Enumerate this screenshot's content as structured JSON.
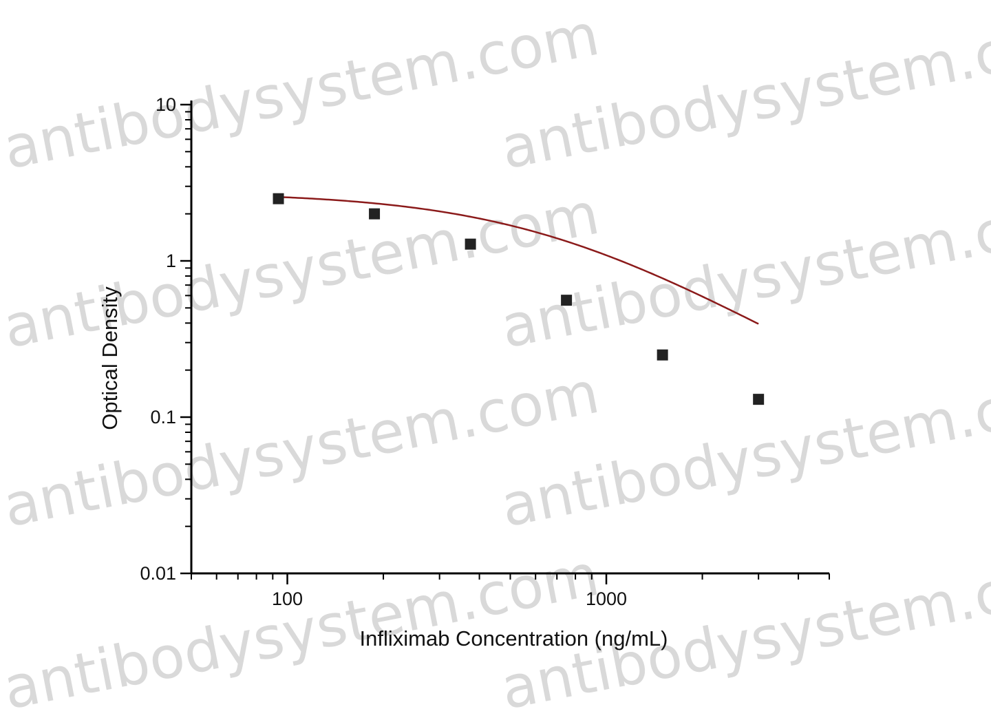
{
  "watermark": {
    "text": "antibodysystem.com",
    "color": "#d9d9d9"
  },
  "chart_data": {
    "type": "scatter",
    "xlabel": "Infliximab Concentration (ng/mL)",
    "ylabel": "Optical Density",
    "x_scale": "log",
    "y_scale": "log",
    "xlim": [
      50,
      5000
    ],
    "ylim": [
      0.01,
      10
    ],
    "x_tick_labels": [
      "100",
      "1000"
    ],
    "y_tick_labels": [
      "10",
      "1",
      "0.1",
      "0.01"
    ],
    "grid": false,
    "legend": "none",
    "series": [
      {
        "marker": "square",
        "marker_color": "#222222",
        "line_color": "#8b1a1a",
        "x": [
          93.75,
          187.5,
          375,
          750,
          1500,
          3000
        ],
        "y": [
          2.5,
          2.0,
          1.28,
          0.56,
          0.25,
          0.13
        ]
      }
    ],
    "fit": {
      "model": "4PL",
      "A": 0.04,
      "B": 1.3,
      "C": 700,
      "D": 2.75
    }
  }
}
